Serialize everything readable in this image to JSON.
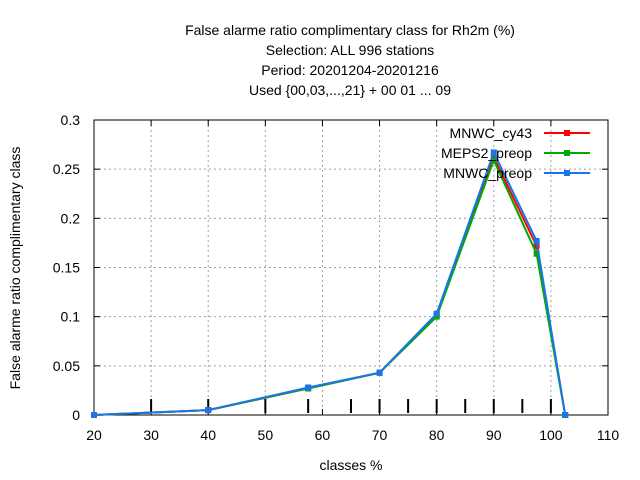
{
  "chart_data": {
    "type": "line",
    "title_lines": [
      "False alarme ratio complimentary class  for Rh2m (%)",
      "Selection: ALL    996 stations",
      "Period: 20201204-20201216",
      "Used {00,03,...,21} + 00 01 ... 09"
    ],
    "xlabel": "classes %",
    "ylabel": "False alarme ratio complimentary class",
    "xlim": [
      20,
      110
    ],
    "ylim": [
      0,
      0.3
    ],
    "xticks": [
      "20",
      "30",
      "40",
      "50",
      "60",
      "70",
      "80",
      "90",
      "100",
      "110"
    ],
    "yticks": [
      "0",
      "0.05",
      "0.1",
      "0.15",
      "0.2",
      "0.25",
      "0.3"
    ],
    "grid": true,
    "legend_position": "top-right",
    "series": [
      {
        "name": "MNWC_cy43",
        "color": "#ff0000",
        "x": [
          20,
          40,
          57.5,
          70,
          80,
          90,
          97.5,
          102.5
        ],
        "y": [
          0.0,
          0.005,
          0.027,
          0.043,
          0.102,
          0.262,
          0.172,
          0.0
        ]
      },
      {
        "name": "MEPS2_preop",
        "color": "#00aa00",
        "x": [
          20,
          40,
          57.5,
          70,
          80,
          90,
          97.5,
          102.5
        ],
        "y": [
          0.0,
          0.005,
          0.027,
          0.043,
          0.1,
          0.259,
          0.164,
          0.0
        ]
      },
      {
        "name": "MNWC_preop",
        "color": "#1a75e8",
        "x": [
          20,
          40,
          57.5,
          70,
          80,
          90,
          97.5,
          102.5
        ],
        "y": [
          0.0,
          0.005,
          0.028,
          0.043,
          0.103,
          0.267,
          0.177,
          0.0
        ]
      }
    ],
    "x_markers": [
      30,
      40,
      50,
      57.5,
      65,
      70,
      75,
      80,
      85,
      90,
      95,
      100
    ]
  }
}
